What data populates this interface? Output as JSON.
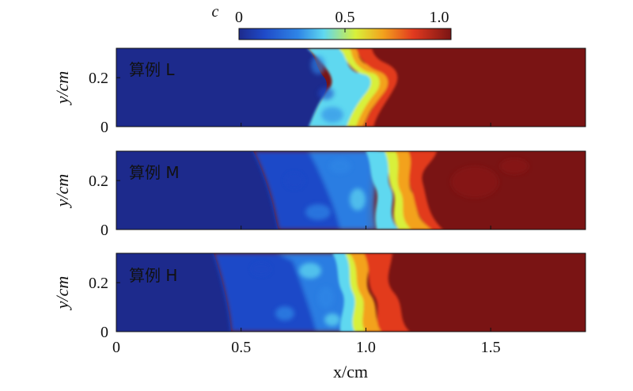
{
  "chart_data": {
    "type": "heatmap",
    "colorbar": {
      "label": "c",
      "ticks": [
        "0",
        "0.5",
        "1.0"
      ],
      "range": [
        0,
        1
      ],
      "colormap": "jet",
      "colors": [
        "#1d2a8c",
        "#1f4ac8",
        "#2f86e6",
        "#5fd8f0",
        "#d8f03a",
        "#f3a21d",
        "#e23a1f",
        "#7a1414"
      ]
    },
    "xlabel": "x/cm",
    "ylabel": "y/cm",
    "xlim": [
      0,
      1.88
    ],
    "ylim": [
      0,
      0.32
    ],
    "xticks": [
      {
        "value": 0,
        "label": "0"
      },
      {
        "value": 0.5,
        "label": "0.5"
      },
      {
        "value": 1.0,
        "label": "1.0"
      },
      {
        "value": 1.5,
        "label": "1.5"
      }
    ],
    "yticks": [
      {
        "value": 0,
        "label": "0"
      },
      {
        "value": 0.2,
        "label": "0.2"
      }
    ],
    "panels": [
      {
        "label": "算例 L",
        "front_x": [
          0.8,
          0.97
        ],
        "mix_width": 0.17
      },
      {
        "label": "算例 M",
        "front_x": [
          0.65,
          1.3
        ],
        "mix_width": 0.65
      },
      {
        "label": "算例 H",
        "front_x": [
          0.45,
          1.2
        ],
        "mix_width": 0.75
      }
    ]
  }
}
